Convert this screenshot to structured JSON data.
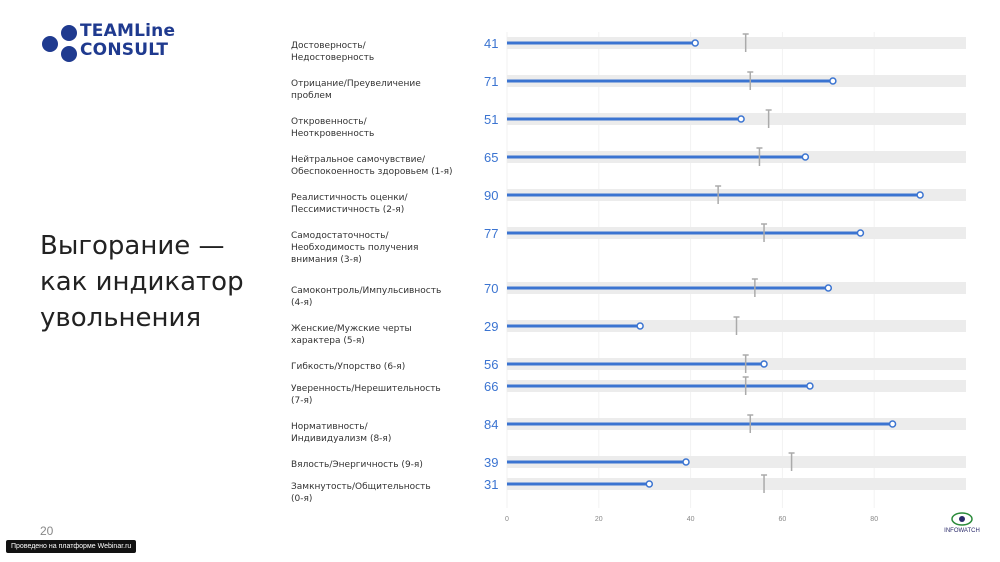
{
  "logo": {
    "line1": "TEAMLine",
    "line2": "CONSULT"
  },
  "title_lines": [
    "Выгорание —",
    "как индикатор",
    "увольнения"
  ],
  "page_number": "20",
  "webinar_badge": "Проведено на платформе Webinar.ru",
  "infowatch_label": "INFOWATCH",
  "colors": {
    "brand": "#1f3a8f",
    "bar": "#3b74d1",
    "track": "#ececec",
    "marker": "#aaaaaa"
  },
  "chart_data": {
    "type": "bar",
    "orientation": "horizontal",
    "xlim": [
      0,
      100
    ],
    "x_ticks": [
      "0",
      "20",
      "40",
      "60",
      "80"
    ],
    "categories": [
      [
        "Достоверность/",
        "Недостоверность"
      ],
      [
        "Отрицание/Преувеличение",
        "проблем"
      ],
      [
        "Откровенность/",
        "Неоткровенность"
      ],
      [
        "Нейтральное самочувствие/",
        "Обеспокоенность здоровьем (1-я)"
      ],
      [
        "Реалистичность оценки/",
        "Пессимистичность (2-я)"
      ],
      [
        "Самодостаточность/",
        "Необходимость получения",
        "внимания (3-я)"
      ],
      [
        "Самоконтроль/Импульсивность",
        "(4-я)"
      ],
      [
        "Женские/Мужские черты",
        "характера (5-я)"
      ],
      [
        "Гибкость/Упорство (6-я)"
      ],
      [
        "Уверенность/Нерешительность",
        "(7-я)"
      ],
      [
        "Нормативность/",
        "Индивидуализм (8-я)"
      ],
      [
        "Вялость/Энергичность (9-я)"
      ],
      [
        "Замкнутость/Общительность",
        "(0-я)"
      ]
    ],
    "values": [
      41,
      71,
      51,
      65,
      90,
      77,
      70,
      29,
      56,
      66,
      84,
      39,
      31
    ],
    "value_labels": [
      "41",
      "71",
      "51",
      "65",
      "90",
      "77",
      "70",
      "29",
      "56",
      "66",
      "84",
      "39",
      "31"
    ],
    "reference_markers": [
      52,
      53,
      57,
      55,
      46,
      56,
      54,
      50,
      52,
      52,
      53,
      62,
      56
    ],
    "grid": false
  }
}
